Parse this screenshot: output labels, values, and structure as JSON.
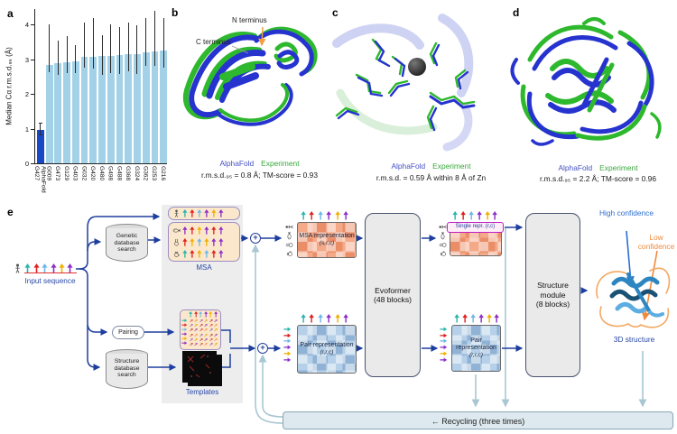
{
  "figure": {
    "panel_a": {
      "label": "a",
      "ylabel": "Median Cα r.m.s.d.₉₅ (Å)"
    },
    "panel_b": {
      "label": "b",
      "n_terminus": "N terminus",
      "c_terminus": "C terminus",
      "legend_alphafold": "AlphaFold",
      "legend_experiment": "Experiment",
      "caption": "r.m.s.d.₉₅ = 0.8 Å; TM-score = 0.93"
    },
    "panel_c": {
      "label": "c",
      "legend_alphafold": "AlphaFold",
      "legend_experiment": "Experiment",
      "caption": "r.m.s.d. = 0.59 Å within 8 Å of Zn"
    },
    "panel_d": {
      "label": "d",
      "legend_alphafold": "AlphaFold",
      "legend_experiment": "Experiment",
      "caption": "r.m.s.d.₉₅ = 2.2 Å; TM-score = 0.96"
    },
    "panel_e": {
      "label": "e",
      "input_sequence": "Input sequence",
      "genetic_db": "Genetic database search",
      "pairing": "Pairing",
      "structure_db": "Structure database search",
      "msa": "MSA",
      "templates": "Templates",
      "msa_representation": "MSA representation",
      "msa_repr_dims": "(s,r,c)",
      "pair_representation": "Pair representation",
      "pair_repr_dims": "(r,r,c)",
      "evoformer": "Evoformer",
      "evoformer_blocks": "(48 blocks)",
      "single_repr": "Single repr. (r,c)",
      "structure_module": "Structure module",
      "structure_module_blocks": "(8 blocks)",
      "high_confidence": "High confidence",
      "low_confidence": "Low confidence",
      "structure_3d": "3D structure",
      "recycling": "← Recycling (three times)",
      "species_icons": [
        "human-icon",
        "fish-icon",
        "rabbit-icon",
        "chicken-icon"
      ],
      "sequence_colors": [
        "#2ab5ac",
        "#e02020",
        "#6fb7e8",
        "#8b2fc9",
        "#f0b000",
        "#8b2fc9"
      ],
      "msa_row_colors": [
        [
          "#2ab5ac",
          "#e02020",
          "#6fb7e8",
          "#8b2fc9",
          "#f0b000",
          "#8b2fc9"
        ],
        [
          "#8b2fc9",
          "#e02020",
          "#f0b000",
          "#8b2fc9",
          "#e02020",
          "#8b2fc9"
        ],
        [
          "#e02020",
          "#f0b000",
          "#6fb7e8",
          "#f0b000",
          "#8b2fc9",
          "#8b2fc9"
        ],
        [
          "#2ab5ac",
          "#e02020",
          "#f0b000",
          "#6fb7e8",
          "#e02020",
          "#8b2fc9"
        ]
      ],
      "grid_palette": [
        "#e04040",
        "#e6953c",
        "#9b59b6",
        "#d4ac0d",
        "#c0392b",
        "#8e44ad"
      ],
      "accent_colors": {
        "flow_arrow": "#1e3e9e",
        "recycle_line": "#a9c7d2",
        "high_confidence": "#2d6fd0",
        "low_confidence": "#f08a3c",
        "label_blue": "#2847a6",
        "alphafold_blue": "#4652c4",
        "experiment_green": "#3aa83c"
      }
    }
  },
  "chart_data": {
    "type": "bar",
    "title": "",
    "xlabel": "",
    "ylabel": "Median Cα r.m.s.d.₉₅ (Å)",
    "ylim": [
      0,
      4.45
    ],
    "yticks": [
      0,
      1,
      2,
      3,
      4
    ],
    "grid": false,
    "categories": [
      "G427\nAlphaFold",
      "G009",
      "G473",
      "G129",
      "G403",
      "G032",
      "G420",
      "G480",
      "G498",
      "G488",
      "G368",
      "G324",
      "G362",
      "G253",
      "G216"
    ],
    "values": [
      0.96,
      2.83,
      2.88,
      2.92,
      2.95,
      3.08,
      3.08,
      3.1,
      3.1,
      3.12,
      3.15,
      3.15,
      3.2,
      3.22,
      3.25
    ],
    "error_low": [
      0.82,
      2.62,
      2.55,
      2.6,
      2.6,
      2.75,
      2.72,
      2.55,
      2.6,
      2.57,
      2.65,
      2.57,
      2.8,
      2.8,
      2.75
    ],
    "error_high": [
      1.15,
      4.0,
      3.55,
      3.67,
      3.4,
      4.05,
      4.18,
      3.7,
      4.0,
      3.93,
      4.05,
      3.98,
      4.18,
      4.4,
      4.18
    ],
    "highlight_index": 0,
    "highlight_color": "#1748c8",
    "bar_color": "#a3d2e8"
  }
}
